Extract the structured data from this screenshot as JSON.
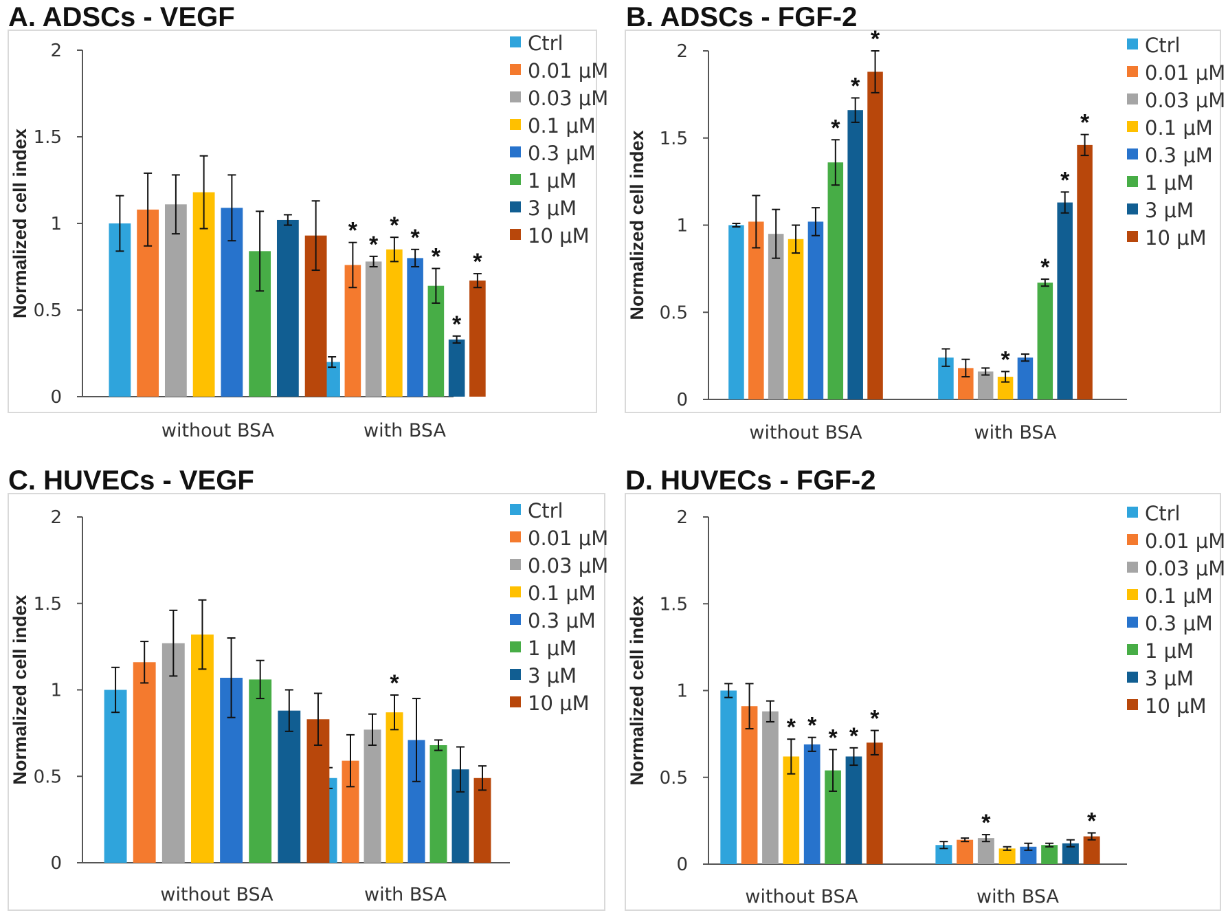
{
  "legend_colors": [
    "#2fa4dc",
    "#f47a2e",
    "#a5a5a5",
    "#ffc000",
    "#2773cc",
    "#47ad46",
    "#115e92",
    "#b8470b"
  ],
  "chart_data": [
    {
      "type": "bar",
      "title": "A. ADSCs - VEGF",
      "ylabel": "Normalized cell index",
      "ylim": [
        0,
        2
      ],
      "yticks": [
        "0",
        "0.5",
        "1",
        "1.5",
        "2"
      ],
      "categories": [
        "without BSA",
        "with BSA"
      ],
      "series": [
        {
          "name": "Ctrl",
          "values": [
            1.0,
            0.2
          ],
          "errors": [
            0.16,
            0.03
          ],
          "sig": [
            false,
            false
          ]
        },
        {
          "name": "0.01 μM",
          "values": [
            1.08,
            0.76
          ],
          "errors": [
            0.21,
            0.13
          ],
          "sig": [
            false,
            true
          ]
        },
        {
          "name": "0.03 μM",
          "values": [
            1.11,
            0.78
          ],
          "errors": [
            0.17,
            0.03
          ],
          "sig": [
            false,
            true
          ]
        },
        {
          "name": "0.1 μM",
          "values": [
            1.18,
            0.85
          ],
          "errors": [
            0.21,
            0.07
          ],
          "sig": [
            false,
            true
          ]
        },
        {
          "name": "0.3 μM",
          "values": [
            1.09,
            0.8
          ],
          "errors": [
            0.19,
            0.05
          ],
          "sig": [
            false,
            true
          ]
        },
        {
          "name": "1 μM",
          "values": [
            0.84,
            0.64
          ],
          "errors": [
            0.23,
            0.1
          ],
          "sig": [
            false,
            true
          ]
        },
        {
          "name": "3 μM",
          "values": [
            1.02,
            0.33
          ],
          "errors": [
            0.03,
            0.02
          ],
          "sig": [
            false,
            true
          ]
        },
        {
          "name": "10 μM",
          "values": [
            0.93,
            0.67
          ],
          "errors": [
            0.2,
            0.04
          ],
          "sig": [
            false,
            true
          ]
        }
      ]
    },
    {
      "type": "bar",
      "title": "B. ADSCs - FGF-2",
      "ylabel": "Normalized cell index",
      "ylim": [
        0,
        2
      ],
      "yticks": [
        "0",
        "0.5",
        "1",
        "1.5",
        "2"
      ],
      "categories": [
        "without BSA",
        "with BSA"
      ],
      "series": [
        {
          "name": "Ctrl",
          "values": [
            1.0,
            0.24
          ],
          "errors": [
            0.01,
            0.05
          ],
          "sig": [
            false,
            false
          ]
        },
        {
          "name": "0.01 μM",
          "values": [
            1.02,
            0.18
          ],
          "errors": [
            0.15,
            0.05
          ],
          "sig": [
            false,
            false
          ]
        },
        {
          "name": "0.03 μM",
          "values": [
            0.95,
            0.16
          ],
          "errors": [
            0.14,
            0.02
          ],
          "sig": [
            false,
            false
          ]
        },
        {
          "name": "0.1 μM",
          "values": [
            0.92,
            0.13
          ],
          "errors": [
            0.08,
            0.03
          ],
          "sig": [
            false,
            true
          ]
        },
        {
          "name": "0.3 μM",
          "values": [
            1.02,
            0.24
          ],
          "errors": [
            0.08,
            0.02
          ],
          "sig": [
            false,
            false
          ]
        },
        {
          "name": "1 μM",
          "values": [
            1.36,
            0.67
          ],
          "errors": [
            0.13,
            0.02
          ],
          "sig": [
            true,
            true
          ]
        },
        {
          "name": "3 μM",
          "values": [
            1.66,
            1.13
          ],
          "errors": [
            0.07,
            0.06
          ],
          "sig": [
            true,
            true
          ]
        },
        {
          "name": "10 μM",
          "values": [
            1.88,
            1.46
          ],
          "errors": [
            0.12,
            0.06
          ],
          "sig": [
            true,
            true
          ]
        }
      ]
    },
    {
      "type": "bar",
      "title": "C. HUVECs - VEGF",
      "ylabel": "Normalized cell index",
      "ylim": [
        0,
        2
      ],
      "yticks": [
        "0",
        "0.5",
        "1",
        "1.5",
        "2"
      ],
      "categories": [
        "without BSA",
        "with BSA"
      ],
      "series": [
        {
          "name": "Ctrl",
          "values": [
            1.0,
            0.49
          ],
          "errors": [
            0.13,
            0.06
          ],
          "sig": [
            false,
            false
          ]
        },
        {
          "name": "0.01 μM",
          "values": [
            1.16,
            0.59
          ],
          "errors": [
            0.12,
            0.15
          ],
          "sig": [
            false,
            false
          ]
        },
        {
          "name": "0.03 μM",
          "values": [
            1.27,
            0.77
          ],
          "errors": [
            0.19,
            0.09
          ],
          "sig": [
            false,
            false
          ]
        },
        {
          "name": "0.1 μM",
          "values": [
            1.32,
            0.87
          ],
          "errors": [
            0.2,
            0.1
          ],
          "sig": [
            false,
            true
          ]
        },
        {
          "name": "0.3 μM",
          "values": [
            1.07,
            0.71
          ],
          "errors": [
            0.23,
            0.24
          ],
          "sig": [
            false,
            false
          ]
        },
        {
          "name": "1 μM",
          "values": [
            1.06,
            0.68
          ],
          "errors": [
            0.11,
            0.03
          ],
          "sig": [
            false,
            false
          ]
        },
        {
          "name": "3 μM",
          "values": [
            0.88,
            0.54
          ],
          "errors": [
            0.12,
            0.13
          ],
          "sig": [
            false,
            false
          ]
        },
        {
          "name": "10 μM",
          "values": [
            0.83,
            0.49
          ],
          "errors": [
            0.15,
            0.07
          ],
          "sig": [
            false,
            false
          ]
        }
      ]
    },
    {
      "type": "bar",
      "title": "D. HUVECs - FGF-2",
      "ylabel": "Normalized cell index",
      "ylim": [
        0,
        2
      ],
      "yticks": [
        "0",
        "0.5",
        "1",
        "1.5",
        "2"
      ],
      "categories": [
        "without BSA",
        "with BSA"
      ],
      "series": [
        {
          "name": "Ctrl",
          "values": [
            1.0,
            0.11
          ],
          "errors": [
            0.04,
            0.02
          ],
          "sig": [
            false,
            false
          ]
        },
        {
          "name": "0.01 μM",
          "values": [
            0.91,
            0.14
          ],
          "errors": [
            0.13,
            0.01
          ],
          "sig": [
            false,
            false
          ]
        },
        {
          "name": "0.03 μM",
          "values": [
            0.88,
            0.15
          ],
          "errors": [
            0.06,
            0.02
          ],
          "sig": [
            false,
            true
          ]
        },
        {
          "name": "0.1 μM",
          "values": [
            0.62,
            0.09
          ],
          "errors": [
            0.1,
            0.01
          ],
          "sig": [
            true,
            false
          ]
        },
        {
          "name": "0.3 μM",
          "values": [
            0.69,
            0.1
          ],
          "errors": [
            0.04,
            0.02
          ],
          "sig": [
            true,
            false
          ]
        },
        {
          "name": "1 μM",
          "values": [
            0.54,
            0.11
          ],
          "errors": [
            0.12,
            0.01
          ],
          "sig": [
            true,
            false
          ]
        },
        {
          "name": "3 μM",
          "values": [
            0.62,
            0.12
          ],
          "errors": [
            0.05,
            0.02
          ],
          "sig": [
            true,
            false
          ]
        },
        {
          "name": "10 μM",
          "values": [
            0.7,
            0.16
          ],
          "errors": [
            0.07,
            0.02
          ],
          "sig": [
            true,
            true
          ]
        }
      ]
    }
  ]
}
